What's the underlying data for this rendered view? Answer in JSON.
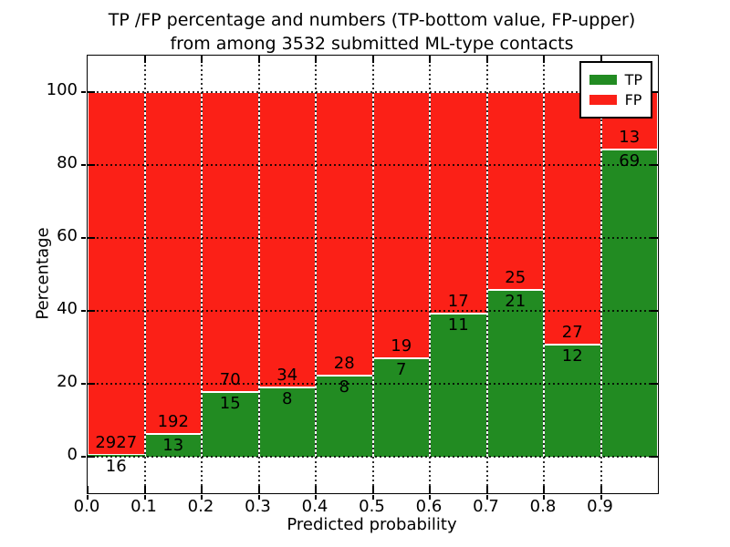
{
  "chart_data": {
    "type": "bar",
    "stacked": true,
    "title_line1": "TP /FP percentage and numbers (TP-bottom value, FP-upper)",
    "title_line2": "from among 3532 submitted ML-type contacts",
    "xlabel": "Predicted probability",
    "ylabel": "Percentage",
    "xlim": [
      0.0,
      1.0
    ],
    "ylim": [
      -10,
      110
    ],
    "grid": true,
    "x_ticks": [
      "0.0",
      "0.1",
      "0.2",
      "0.3",
      "0.4",
      "0.5",
      "0.6",
      "0.7",
      "0.8",
      "0.9"
    ],
    "y_ticks": [
      "0",
      "20",
      "40",
      "60",
      "80",
      "100"
    ],
    "colors": {
      "tp": "#228b22",
      "fp": "#fb2017",
      "background": "#ffffff",
      "text": "#000000",
      "bar_edge": "#ffffff"
    },
    "legend": {
      "position": "upper-right",
      "items": [
        {
          "label": "TP",
          "color": "#228b22"
        },
        {
          "label": "FP",
          "color": "#fb2017"
        }
      ]
    },
    "bars": [
      {
        "bin_start": "0.0",
        "tp": 16,
        "fp": 2927,
        "tp_pct": 0.54
      },
      {
        "bin_start": "0.1",
        "tp": 13,
        "fp": 192,
        "tp_pct": 6.34
      },
      {
        "bin_start": "0.2",
        "tp": 15,
        "fp": 70,
        "tp_pct": 17.65
      },
      {
        "bin_start": "0.3",
        "tp": 8,
        "fp": 34,
        "tp_pct": 19.05
      },
      {
        "bin_start": "0.4",
        "tp": 8,
        "fp": 28,
        "tp_pct": 22.22
      },
      {
        "bin_start": "0.5",
        "tp": 7,
        "fp": 19,
        "tp_pct": 26.92
      },
      {
        "bin_start": "0.6",
        "tp": 11,
        "fp": 17,
        "tp_pct": 39.29
      },
      {
        "bin_start": "0.7",
        "tp": 21,
        "fp": 25,
        "tp_pct": 45.65
      },
      {
        "bin_start": "0.8",
        "tp": 12,
        "fp": 27,
        "tp_pct": 30.77
      },
      {
        "bin_start": "0.9",
        "tp": 69,
        "fp": 13,
        "tp_pct": 84.15
      }
    ]
  }
}
